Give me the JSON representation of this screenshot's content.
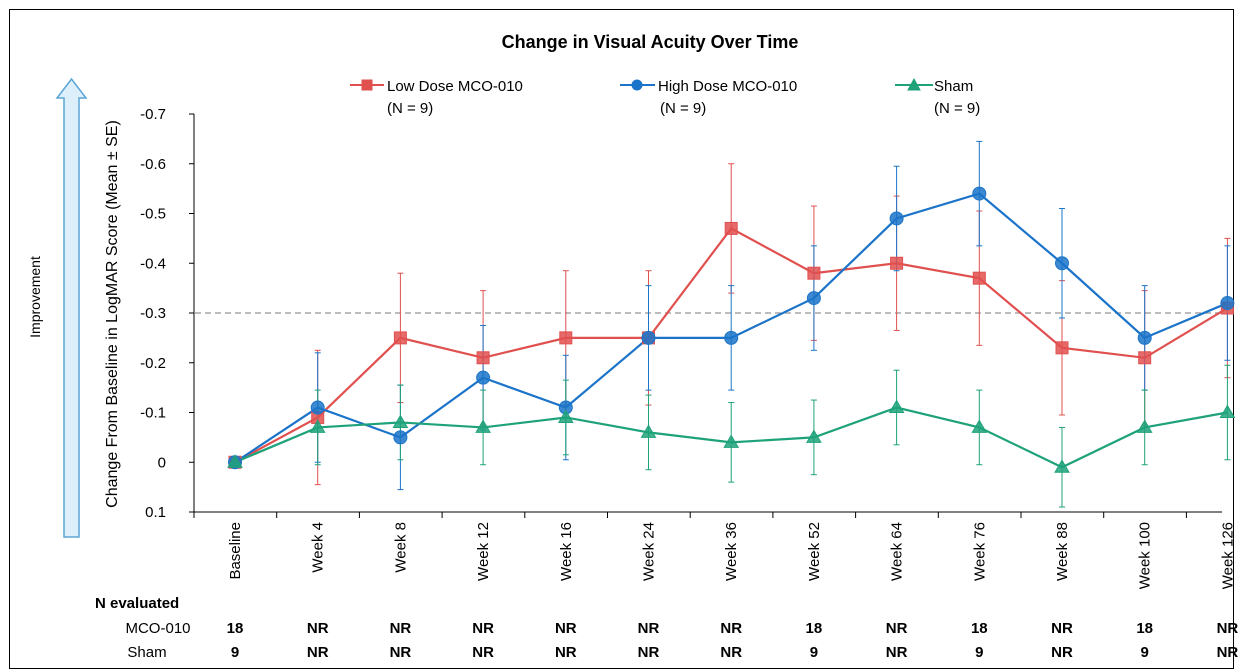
{
  "colors": {
    "low_dose": "#E0504F",
    "high_dose": "#1B74C9",
    "sham": "#1EA27A",
    "arrow_fill": "#DCEFFB",
    "arrow_stroke": "#5BA5D6",
    "reference_line": "#A6A6A6"
  },
  "side_label": "Improvement",
  "chart_data": {
    "type": "line",
    "title": "Change in Visual Acuity Over Time",
    "xlabel": "",
    "ylabel": "Change From Baseline in LogMAR Score  (Mean ± SE)",
    "categories": [
      "Baseline",
      "Week 4",
      "Week 8",
      "Week 12",
      "Week 16",
      "Week 24",
      "Week 36",
      "Week 52",
      "Week 64",
      "Week 76",
      "Week 88",
      "Week 100",
      "Week 126"
    ],
    "yticks": [
      "-0.7",
      "-0.6",
      "-0.5",
      "-0.4",
      "-0.3",
      "-0.2",
      "-0.1",
      "0",
      "0.1"
    ],
    "ylim": [
      0.1,
      -0.7
    ],
    "y_inverted": true,
    "reference_line_y": -0.3,
    "grid": false,
    "legend_position": "top",
    "series": [
      {
        "name": "Low Dose MCO-010",
        "n_label": "(N = 9)",
        "marker": "square",
        "values": [
          0,
          -0.09,
          -0.25,
          -0.21,
          -0.25,
          -0.25,
          -0.47,
          -0.38,
          -0.4,
          -0.37,
          -0.23,
          -0.21,
          -0.31
        ],
        "se": [
          0,
          0.135,
          0.13,
          0.135,
          0.135,
          0.135,
          0.13,
          0.135,
          0.135,
          0.135,
          0.135,
          0.135,
          0.14
        ]
      },
      {
        "name": "High Dose MCO-010",
        "n_label": "(N = 9)",
        "marker": "circle",
        "values": [
          0,
          -0.11,
          -0.05,
          -0.17,
          -0.11,
          -0.25,
          -0.25,
          -0.33,
          -0.49,
          -0.54,
          -0.4,
          -0.25,
          -0.32
        ],
        "se": [
          0,
          0.11,
          0.105,
          0.105,
          0.105,
          0.105,
          0.105,
          0.105,
          0.105,
          0.105,
          0.11,
          0.105,
          0.115
        ]
      },
      {
        "name": "Sham",
        "n_label": "(N = 9)",
        "marker": "triangle",
        "values": [
          0,
          -0.07,
          -0.08,
          -0.07,
          -0.09,
          -0.06,
          -0.04,
          -0.05,
          -0.11,
          -0.07,
          0.01,
          -0.07,
          -0.1
        ],
        "se": [
          0,
          0.075,
          0.075,
          0.075,
          0.075,
          0.075,
          0.08,
          0.075,
          0.075,
          0.075,
          0.08,
          0.075,
          0.095
        ]
      }
    ]
  },
  "n_table": {
    "header": "N evaluated",
    "rows": [
      {
        "label": "MCO-010",
        "values": [
          "18",
          "NR",
          "NR",
          "NR",
          "NR",
          "NR",
          "NR",
          "18",
          "NR",
          "18",
          "NR",
          "18",
          "NR"
        ]
      },
      {
        "label": "Sham",
        "values": [
          "9",
          "NR",
          "NR",
          "NR",
          "NR",
          "NR",
          "NR",
          "9",
          "NR",
          "9",
          "NR",
          "9",
          "NR"
        ]
      }
    ]
  }
}
